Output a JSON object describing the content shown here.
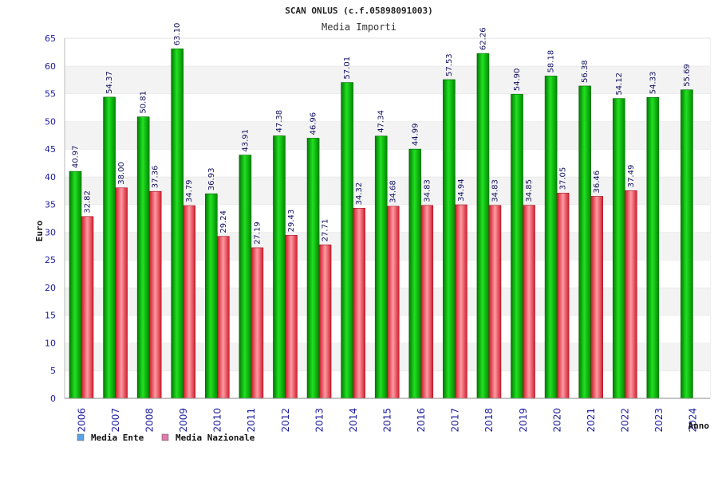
{
  "chart_data": {
    "type": "bar",
    "title": "SCAN ONLUS (c.f.05898091003)",
    "subtitle": "Media Importi",
    "ylabel": "Euro",
    "xlabel": "Anno",
    "ylim": [
      0,
      65
    ],
    "ytick_step": 5,
    "grid": true,
    "legend_position": "bottom-left",
    "categories": [
      "2006",
      "2007",
      "2008",
      "2009",
      "2010",
      "2011",
      "2012",
      "2013",
      "2014",
      "2015",
      "2016",
      "2017",
      "2018",
      "2019",
      "2020",
      "2021",
      "2022",
      "2023",
      "2024"
    ],
    "series": [
      {
        "name": "Media Ente",
        "color": "#00b800",
        "legend_color": "#5ba3e6",
        "values": [
          40.97,
          54.37,
          50.81,
          63.1,
          36.93,
          43.91,
          47.38,
          46.96,
          57.01,
          47.34,
          44.99,
          57.53,
          62.26,
          54.9,
          58.18,
          56.38,
          54.12,
          54.33,
          55.69
        ],
        "labels": [
          "40.97",
          "54.37",
          "50.81",
          "63.10",
          "36.93",
          "43.91",
          "47.38",
          "46.96",
          "57.01",
          "47.34",
          "44.99",
          "57.53",
          "62.26",
          "54.90",
          "58.18",
          "56.38",
          "54.12",
          "54.33",
          "55.69"
        ]
      },
      {
        "name": "Media Nazionale",
        "color": "#e03040",
        "legend_color": "#e07aa8",
        "values": [
          32.82,
          38.0,
          37.36,
          34.79,
          29.24,
          27.19,
          29.43,
          27.71,
          34.32,
          34.68,
          34.83,
          34.94,
          34.83,
          34.85,
          37.05,
          36.46,
          37.49,
          null,
          null
        ],
        "labels": [
          "32.82",
          "38.00",
          "37.36",
          "34.79",
          "29.24",
          "27.19",
          "29.43",
          "27.71",
          "34.32",
          "34.68",
          "34.83",
          "34.94",
          "34.83",
          "34.85",
          "37.05",
          "36.46",
          "37.49",
          null,
          null
        ]
      }
    ]
  }
}
